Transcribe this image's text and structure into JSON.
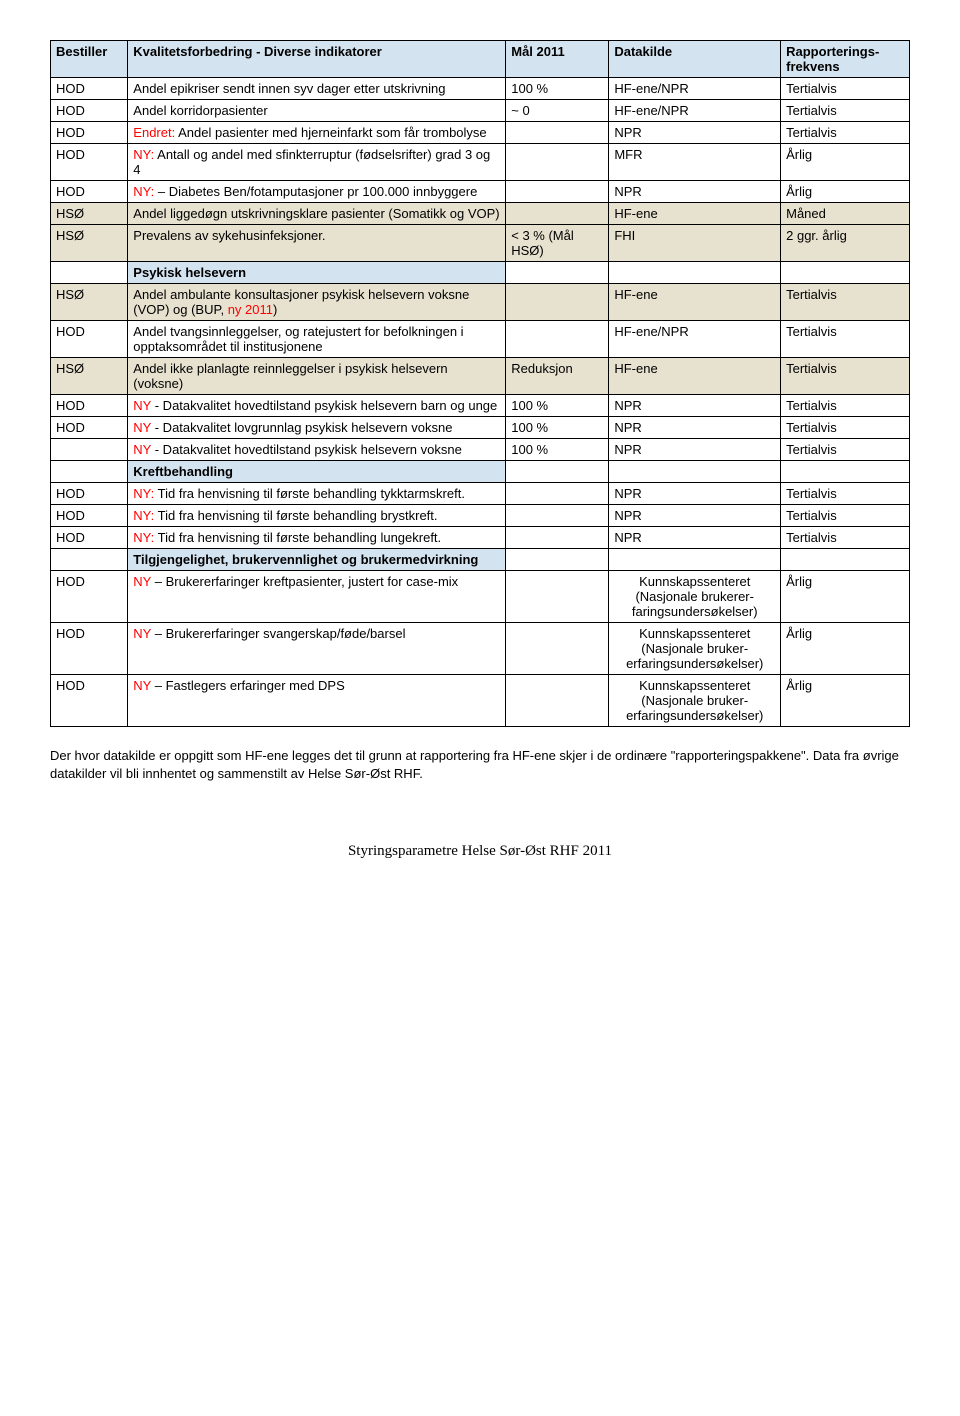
{
  "headers": {
    "bestiller": "Bestiller",
    "indikator": "Kvalitetsforbedring - Diverse indikatorer",
    "mal": "Mål 2011",
    "datakilde": "Datakilde",
    "freq": "Rapporterings-frekvens"
  },
  "rows": [
    {
      "type": "data",
      "bestiller": "HOD",
      "indikator": "Andel epikriser sendt innen syv dager etter utskrivning",
      "mal": "100 %",
      "datakilde": "HF-ene/NPR",
      "freq": "Tertialvis"
    },
    {
      "type": "data",
      "bestiller": "HOD",
      "indikator": "Andel korridorpasienter",
      "mal": "~ 0",
      "datakilde": "HF-ene/NPR",
      "freq": "Tertialvis"
    },
    {
      "type": "data",
      "bestiller": "HOD",
      "indikator_parts": [
        {
          "text": "Endret:",
          "red": true
        },
        {
          "text": " Andel pasienter med hjerneinfarkt som får trombolyse"
        }
      ],
      "mal": "",
      "datakilde": "NPR",
      "freq": "Tertialvis"
    },
    {
      "type": "data",
      "bestiller": "HOD",
      "indikator_parts": [
        {
          "text": "NY:",
          "red": true
        },
        {
          "text": " Antall og andel med sfinkterruptur (fødselsrifter) grad 3 og 4"
        }
      ],
      "mal": "",
      "datakilde": "MFR",
      "freq": "Årlig"
    },
    {
      "type": "data",
      "bestiller": "HOD",
      "indikator_parts": [
        {
          "text": "NY:",
          "red": true
        },
        {
          "text": " – Diabetes Ben/fotamputasjoner pr 100.000 innbyggere"
        }
      ],
      "mal": "",
      "datakilde": "NPR",
      "freq": "Årlig"
    },
    {
      "type": "data",
      "hso": true,
      "bestiller": "HSØ",
      "indikator": "Andel liggedøgn utskrivningsklare pasienter (Somatikk og VOP)",
      "mal": "",
      "datakilde": "HF-ene",
      "freq": "Måned"
    },
    {
      "type": "data",
      "hso": true,
      "bestiller": "HSØ",
      "indikator": "Prevalens av sykehusinfeksjoner.",
      "mal": "< 3 % (Mål HSØ)",
      "datakilde": "FHI",
      "freq": "2 ggr. årlig"
    },
    {
      "type": "section",
      "label": "Psykisk helsevern"
    },
    {
      "type": "data",
      "hso": true,
      "bestiller": "HSØ",
      "indikator_parts": [
        {
          "text": "Andel ambulante konsultasjoner psykisk helsevern voksne (VOP) og (BUP, "
        },
        {
          "text": "ny 2011",
          "red": true
        },
        {
          "text": ")"
        }
      ],
      "mal": "",
      "datakilde": "HF-ene",
      "freq": "Tertialvis"
    },
    {
      "type": "data",
      "bestiller": "HOD",
      "indikator": "Andel tvangsinnleggelser, og ratejustert for befolkningen i opptaksområdet til institusjonene",
      "mal": "",
      "datakilde": "HF-ene/NPR",
      "freq": "Tertialvis"
    },
    {
      "type": "data",
      "hso": true,
      "bestiller": "HSØ",
      "indikator": "Andel ikke planlagte reinnleggelser i psykisk helsevern (voksne)",
      "mal": "Reduksjon",
      "datakilde": "HF-ene",
      "freq": "Tertialvis"
    },
    {
      "type": "data",
      "bestiller": "HOD",
      "indikator_parts": [
        {
          "text": "NY",
          "red": true
        },
        {
          "text": " - Datakvalitet hovedtilstand psykisk helsevern barn og unge"
        }
      ],
      "mal": "100 %",
      "datakilde": "NPR",
      "freq": "Tertialvis"
    },
    {
      "type": "data",
      "bestiller": "HOD",
      "indikator_parts": [
        {
          "text": "NY",
          "red": true
        },
        {
          "text": " - Datakvalitet lovgrunnlag psykisk helsevern voksne"
        }
      ],
      "mal": "100 %",
      "datakilde": "NPR",
      "freq": "Tertialvis"
    },
    {
      "type": "data",
      "bestiller": "",
      "indikator_parts": [
        {
          "text": "NY",
          "red": true
        },
        {
          "text": " - Datakvalitet hovedtilstand psykisk helsevern voksne"
        }
      ],
      "mal": "100 %",
      "datakilde": "NPR",
      "freq": "Tertialvis"
    },
    {
      "type": "section",
      "label": "Kreftbehandling"
    },
    {
      "type": "data",
      "bestiller": "HOD",
      "indikator_parts": [
        {
          "text": "NY:",
          "red": true
        },
        {
          "text": " Tid fra henvisning til første behandling tykktarmskreft."
        }
      ],
      "mal": "",
      "datakilde": "NPR",
      "freq": "Tertialvis"
    },
    {
      "type": "data",
      "bestiller": "HOD",
      "indikator_parts": [
        {
          "text": "NY:",
          "red": true
        },
        {
          "text": " Tid fra henvisning til første behandling brystkreft."
        }
      ],
      "mal": "",
      "datakilde": "NPR",
      "freq": "Tertialvis"
    },
    {
      "type": "data",
      "bestiller": "HOD",
      "indikator_parts": [
        {
          "text": "NY:",
          "red": true
        },
        {
          "text": " Tid fra henvisning til første behandling lungekreft."
        }
      ],
      "mal": "",
      "datakilde": "NPR",
      "freq": "Tertialvis"
    },
    {
      "type": "section",
      "label": "Tilgjengelighet, brukervennlighet og brukermedvirkning"
    },
    {
      "type": "data",
      "bestiller": "HOD",
      "indikator_parts": [
        {
          "text": "NY",
          "red": true
        },
        {
          "text": " – Brukererfaringer kreftpasienter, justert for case-mix"
        }
      ],
      "mal": "",
      "datakilde": "Kunnskapssenteret (Nasjonale brukerer-faringsundersøkelser)",
      "datakilde_center": true,
      "freq": "Årlig"
    },
    {
      "type": "data",
      "bestiller": "HOD",
      "indikator_parts": [
        {
          "text": "NY",
          "red": true
        },
        {
          "text": " – Brukererfaringer svangerskap/føde/barsel"
        }
      ],
      "mal": "",
      "datakilde": "Kunnskapssenteret (Nasjonale bruker-erfaringsundersøkelser)",
      "datakilde_center": true,
      "freq": "Årlig"
    },
    {
      "type": "data",
      "bestiller": "HOD",
      "indikator_parts": [
        {
          "text": "NY",
          "red": true
        },
        {
          "text": " – Fastlegers erfaringer med DPS"
        }
      ],
      "mal": "",
      "datakilde": "Kunnskapssenteret (Nasjonale bruker-erfaringsundersøkelser)",
      "datakilde_center": true,
      "freq": "Årlig"
    }
  ],
  "footer_paragraph": "Der hvor datakilde er oppgitt som HF-ene legges det til grunn at rapportering fra HF-ene skjer i de ordinære \"rapporteringspakkene\". Data fra øvrige datakilder vil bli innhentet og sammenstilt av Helse Sør-Øst RHF.",
  "page_footer": "Styringsparametre Helse Sør-Øst RHF 2011"
}
